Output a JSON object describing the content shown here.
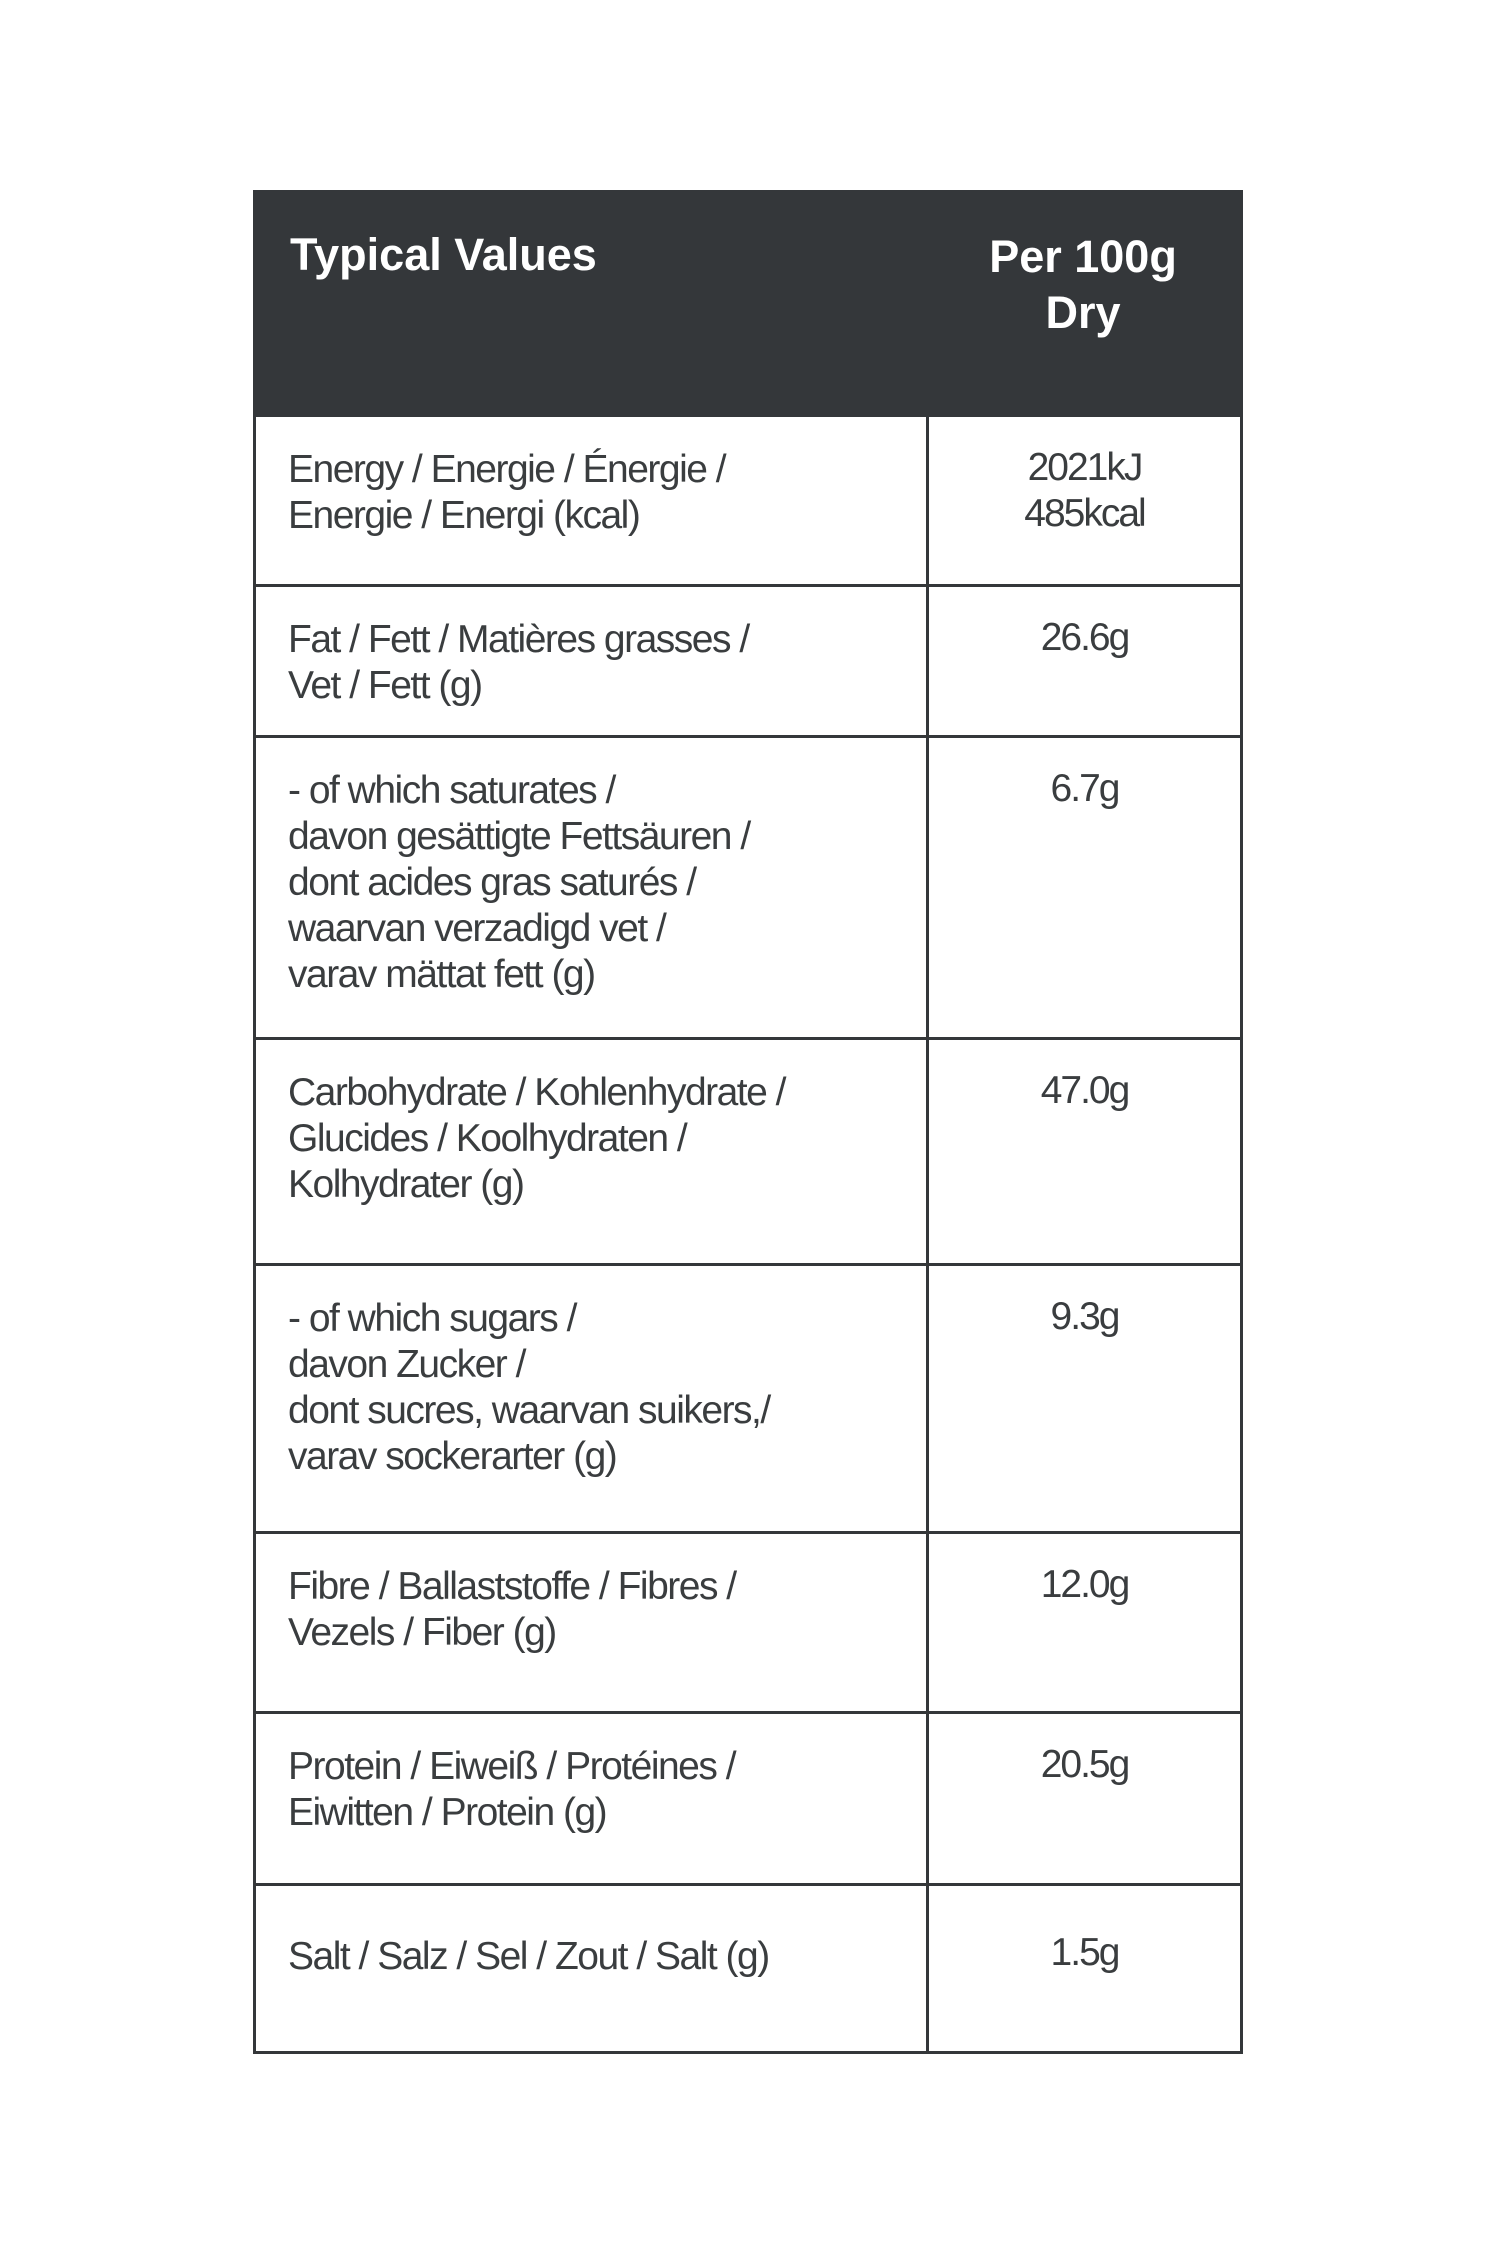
{
  "header": {
    "label": "Typical Values",
    "value_lines": [
      "Per 100g",
      "Dry"
    ]
  },
  "rows": [
    {
      "label_lines": [
        "Energy / Energie / Énergie /",
        "Energie / Energi (kcal)"
      ],
      "value_lines": [
        "2021kJ",
        "485kcal"
      ]
    },
    {
      "label_lines": [
        "Fat / Fett / Matières grasses /",
        "Vet / Fett (g)"
      ],
      "value_lines": [
        "26.6g"
      ]
    },
    {
      "label_lines": [
        "- of which saturates /",
        "davon gesättigte Fettsäuren /",
        "dont acides gras saturés /",
        "waarvan verzadigd vet /",
        "varav mättat fett (g)"
      ],
      "value_lines": [
        "6.7g"
      ]
    },
    {
      "label_lines": [
        "Carbohydrate / Kohlenhydrate /",
        "Glucides / Koolhydraten /",
        "Kolhydrater (g)"
      ],
      "value_lines": [
        "47.0g"
      ]
    },
    {
      "label_lines": [
        "- of which sugars /",
        "davon Zucker /",
        "dont sucres, waarvan suikers,/",
        "varav sockerarter (g)"
      ],
      "value_lines": [
        "9.3g"
      ]
    },
    {
      "label_lines": [
        "Fibre / Ballaststoffe / Fibres /",
        "Vezels / Fiber (g)"
      ],
      "value_lines": [
        "12.0g"
      ]
    },
    {
      "label_lines": [
        "Protein / Eiweiß / Protéines /",
        "Eiwitten / Protein (g)"
      ],
      "value_lines": [
        "20.5g"
      ]
    },
    {
      "label_lines": [
        "Salt / Salz / Sel / Zout / Salt (g)"
      ],
      "value_lines": [
        "1.5g"
      ]
    }
  ]
}
